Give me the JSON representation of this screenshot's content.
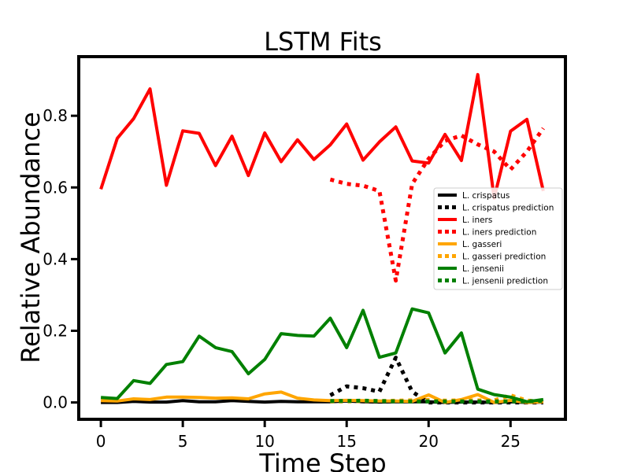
{
  "chart_data": {
    "type": "line",
    "title": "LSTM Fits",
    "xlabel": "Time Step",
    "ylabel": "Relative Abundance",
    "xlim": [
      -1.35,
      28.35
    ],
    "ylim": [
      -0.047,
      0.965
    ],
    "xticks": [
      0,
      5,
      10,
      15,
      20,
      25
    ],
    "xtick_labels": [
      "0",
      "5",
      "10",
      "15",
      "20",
      "25"
    ],
    "yticks": [
      0.0,
      0.2,
      0.4,
      0.6,
      0.8
    ],
    "ytick_labels": [
      "0.0",
      "0.2",
      "0.4",
      "0.6",
      "0.8"
    ],
    "grid": false,
    "legend_position": "center-right",
    "series": [
      {
        "name": "L. crispatus",
        "color": "#000000",
        "style": "solid",
        "x": [
          0,
          1,
          2,
          3,
          4,
          5,
          6,
          7,
          8,
          9,
          10,
          11,
          12,
          13,
          14,
          15,
          16,
          17,
          18,
          19,
          20,
          21,
          22,
          23,
          24,
          25,
          26,
          27
        ],
        "y": [
          0.0,
          0.0,
          0.003,
          0.001,
          0.001,
          0.005,
          0.002,
          0.002,
          0.005,
          0.003,
          0.001,
          0.003,
          0.002,
          0.002,
          0.002,
          0.004,
          0.002,
          0.001,
          0.002,
          0.002,
          0.002,
          0.0,
          0.001,
          0.001,
          0.0,
          0.002,
          0.0,
          0.001
        ]
      },
      {
        "name": "L. crispatus prediction",
        "color": "#000000",
        "style": "dotted",
        "x": [
          14,
          15,
          16,
          17,
          18,
          19,
          20,
          21,
          22,
          23,
          24,
          25,
          26,
          27
        ],
        "y": [
          0.02,
          0.045,
          0.04,
          0.03,
          0.125,
          0.03,
          0.0,
          0.0,
          0.0,
          0.0,
          0.0,
          0.0,
          0.0,
          0.0
        ]
      },
      {
        "name": "L. iners",
        "color": "#ff0000",
        "style": "solid",
        "x": [
          0,
          1,
          2,
          3,
          4,
          5,
          6,
          7,
          8,
          9,
          10,
          11,
          12,
          13,
          14,
          15,
          16,
          17,
          18,
          19,
          20,
          21,
          22,
          23,
          24,
          25,
          26,
          27
        ],
        "y": [
          0.595,
          0.737,
          0.792,
          0.875,
          0.606,
          0.758,
          0.751,
          0.661,
          0.743,
          0.633,
          0.752,
          0.672,
          0.733,
          0.678,
          0.719,
          0.777,
          0.676,
          0.727,
          0.769,
          0.674,
          0.668,
          0.748,
          0.675,
          0.915,
          0.57,
          0.757,
          0.79,
          0.59
        ]
      },
      {
        "name": "L. iners prediction",
        "color": "#ff0000",
        "style": "dotted",
        "x": [
          14,
          15,
          16,
          17,
          18,
          19,
          20,
          21,
          22,
          23,
          24,
          25,
          26,
          27
        ],
        "y": [
          0.622,
          0.61,
          0.605,
          0.59,
          0.34,
          0.61,
          0.68,
          0.73,
          0.745,
          0.72,
          0.7,
          0.65,
          0.7,
          0.765
        ]
      },
      {
        "name": "L. gasseri",
        "color": "#ffa500",
        "style": "solid",
        "x": [
          0,
          1,
          2,
          3,
          4,
          5,
          6,
          7,
          8,
          9,
          10,
          11,
          12,
          13,
          14,
          15,
          16,
          17,
          18,
          19,
          20,
          21,
          22,
          23,
          24,
          25,
          26,
          27
        ],
        "y": [
          0.005,
          0.004,
          0.01,
          0.008,
          0.015,
          0.015,
          0.014,
          0.012,
          0.013,
          0.01,
          0.024,
          0.029,
          0.012,
          0.007,
          0.005,
          0.006,
          0.005,
          0.004,
          0.004,
          0.003,
          0.021,
          0.0,
          0.008,
          0.022,
          0.0,
          0.006,
          0.0,
          0.002
        ]
      },
      {
        "name": "L. gasseri prediction",
        "color": "#ffa500",
        "style": "dotted",
        "x": [
          14,
          15,
          16,
          17,
          18,
          19,
          20,
          21,
          22,
          23,
          24,
          25,
          26,
          27
        ],
        "y": [
          0.003,
          0.003,
          0.004,
          0.004,
          0.005,
          0.006,
          0.007,
          0.005,
          0.006,
          0.006,
          0.006,
          0.02,
          0.005,
          0.004
        ]
      },
      {
        "name": "L. jensenii",
        "color": "#008000",
        "style": "solid",
        "x": [
          0,
          1,
          2,
          3,
          4,
          5,
          6,
          7,
          8,
          9,
          10,
          11,
          12,
          13,
          14,
          15,
          16,
          17,
          18,
          19,
          20,
          21,
          22,
          23,
          24,
          25,
          26,
          27
        ],
        "y": [
          0.014,
          0.011,
          0.061,
          0.053,
          0.106,
          0.114,
          0.185,
          0.153,
          0.142,
          0.08,
          0.12,
          0.192,
          0.187,
          0.185,
          0.235,
          0.153,
          0.257,
          0.126,
          0.138,
          0.261,
          0.25,
          0.138,
          0.194,
          0.037,
          0.022,
          0.015,
          0.002,
          0.008
        ]
      },
      {
        "name": "L. jensenii prediction",
        "color": "#008000",
        "style": "dotted",
        "x": [
          14,
          15,
          16,
          17,
          18,
          19,
          20,
          21,
          22,
          23,
          24,
          25,
          26,
          27
        ],
        "y": [
          0.004,
          0.004,
          0.005,
          0.004,
          0.003,
          0.003,
          0.003,
          0.003,
          0.003,
          0.003,
          0.003,
          0.003,
          0.003,
          0.005
        ]
      }
    ]
  }
}
